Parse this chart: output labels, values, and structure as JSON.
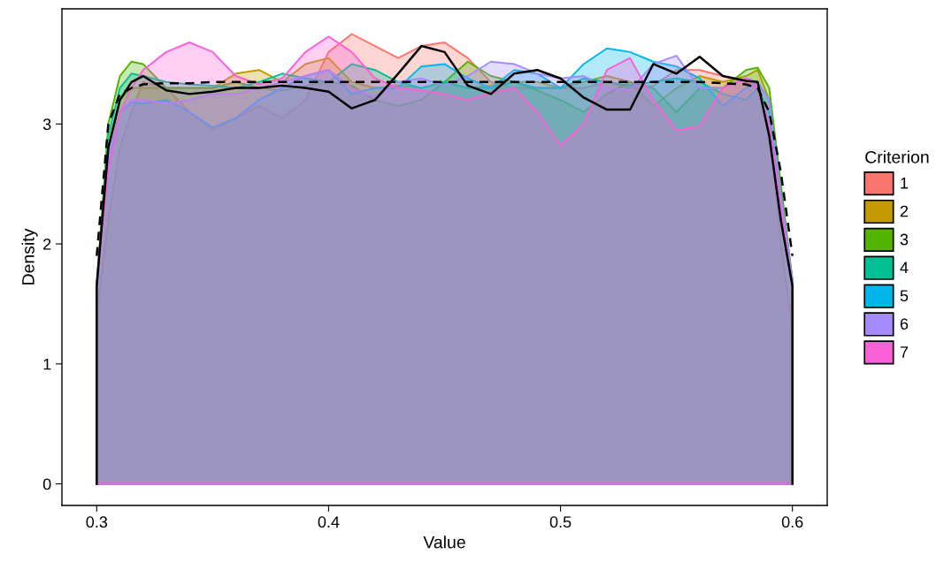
{
  "chart_data": {
    "type": "area",
    "xlabel": "Value",
    "ylabel": "Density",
    "legend_title": "Criterion",
    "legend": "right",
    "grid": false,
    "xlim": [
      0.285,
      0.615
    ],
    "ylim": [
      -0.18,
      3.96
    ],
    "xticks": [
      0.3,
      0.4,
      0.5,
      0.6
    ],
    "yticks": [
      0,
      1,
      2,
      3
    ],
    "x": [
      0.3,
      0.305,
      0.31,
      0.315,
      0.32,
      0.33,
      0.34,
      0.35,
      0.36,
      0.37,
      0.38,
      0.39,
      0.4,
      0.41,
      0.42,
      0.43,
      0.44,
      0.45,
      0.46,
      0.47,
      0.48,
      0.49,
      0.5,
      0.51,
      0.52,
      0.53,
      0.54,
      0.55,
      0.56,
      0.57,
      0.58,
      0.585,
      0.59,
      0.595,
      0.6
    ],
    "series": [
      {
        "name": "1",
        "color": "#f8766d",
        "values": [
          1.4,
          2.2,
          2.8,
          3.1,
          3.35,
          3.3,
          3.1,
          2.95,
          3.05,
          3.15,
          3.05,
          3.2,
          3.6,
          3.75,
          3.65,
          3.55,
          3.65,
          3.68,
          3.55,
          3.35,
          3.3,
          3.3,
          3.3,
          3.3,
          3.35,
          3.3,
          3.32,
          3.45,
          3.45,
          3.4,
          3.35,
          3.3,
          3.0,
          2.0,
          1.3
        ]
      },
      {
        "name": "2",
        "color": "#c49a00",
        "values": [
          1.65,
          2.8,
          3.2,
          3.3,
          3.3,
          3.3,
          3.3,
          3.3,
          3.42,
          3.45,
          3.35,
          3.5,
          3.55,
          3.35,
          3.3,
          3.32,
          3.3,
          3.35,
          3.3,
          3.32,
          3.35,
          3.35,
          3.3,
          3.35,
          3.4,
          3.35,
          3.15,
          3.3,
          3.4,
          3.35,
          3.4,
          3.45,
          3.2,
          2.4,
          1.65
        ]
      },
      {
        "name": "3",
        "color": "#53b400",
        "values": [
          1.65,
          3.0,
          3.4,
          3.52,
          3.5,
          3.3,
          3.3,
          3.3,
          3.35,
          3.3,
          3.28,
          3.32,
          3.35,
          3.32,
          3.2,
          3.15,
          3.2,
          3.35,
          3.52,
          3.4,
          3.35,
          3.28,
          3.2,
          3.1,
          3.25,
          3.35,
          3.3,
          3.1,
          3.3,
          3.3,
          3.45,
          3.47,
          3.3,
          2.5,
          1.7
        ]
      },
      {
        "name": "4",
        "color": "#00c094",
        "values": [
          1.65,
          2.9,
          3.3,
          3.42,
          3.4,
          3.35,
          3.33,
          3.32,
          3.3,
          3.35,
          3.42,
          3.38,
          3.35,
          3.5,
          3.45,
          3.35,
          3.3,
          3.35,
          3.3,
          3.3,
          3.35,
          3.3,
          3.3,
          3.38,
          3.35,
          3.32,
          3.35,
          3.38,
          3.35,
          3.25,
          3.2,
          3.3,
          3.1,
          2.4,
          1.65
        ]
      },
      {
        "name": "5",
        "color": "#00b6eb",
        "values": [
          1.65,
          2.7,
          3.1,
          3.18,
          3.17,
          3.2,
          3.1,
          2.97,
          3.05,
          3.2,
          3.3,
          3.4,
          3.45,
          3.25,
          3.3,
          3.3,
          3.48,
          3.5,
          3.38,
          3.3,
          3.45,
          3.42,
          3.3,
          3.5,
          3.63,
          3.6,
          3.52,
          3.48,
          3.38,
          3.15,
          3.3,
          3.35,
          3.2,
          2.4,
          1.7
        ]
      },
      {
        "name": "6",
        "color": "#a58aff",
        "values": [
          1.7,
          2.7,
          3.1,
          3.2,
          3.2,
          3.17,
          3.2,
          3.25,
          3.25,
          3.3,
          3.35,
          3.4,
          3.45,
          3.3,
          3.22,
          3.35,
          3.38,
          3.32,
          3.4,
          3.52,
          3.5,
          3.42,
          3.38,
          3.4,
          3.3,
          3.28,
          3.5,
          3.57,
          3.3,
          3.3,
          3.38,
          3.35,
          3.2,
          2.4,
          1.7
        ]
      },
      {
        "name": "7",
        "color": "#fb61d7",
        "values": [
          1.65,
          2.6,
          3.1,
          3.3,
          3.45,
          3.6,
          3.68,
          3.6,
          3.4,
          3.33,
          3.38,
          3.6,
          3.73,
          3.6,
          3.38,
          3.3,
          3.28,
          3.25,
          3.2,
          3.26,
          3.3,
          3.1,
          2.82,
          3.0,
          3.45,
          3.55,
          3.2,
          2.95,
          2.98,
          3.3,
          3.38,
          3.3,
          3.0,
          2.3,
          1.65
        ]
      },
      {
        "type": "line",
        "color": "#000000",
        "line_style": "dashed",
        "values": [
          1.9,
          3.0,
          3.25,
          3.3,
          3.33,
          3.34,
          3.34,
          3.35,
          3.35,
          3.35,
          3.35,
          3.35,
          3.35,
          3.35,
          3.35,
          3.35,
          3.35,
          3.35,
          3.35,
          3.35,
          3.35,
          3.35,
          3.35,
          3.35,
          3.35,
          3.35,
          3.35,
          3.35,
          3.35,
          3.34,
          3.33,
          3.3,
          3.1,
          2.6,
          1.9
        ]
      },
      {
        "type": "line",
        "color": "#000000",
        "line_style": "solid",
        "x": [
          0.3,
          0.3,
          0.305,
          0.31,
          0.315,
          0.32,
          0.33,
          0.34,
          0.35,
          0.36,
          0.37,
          0.38,
          0.39,
          0.4,
          0.41,
          0.42,
          0.43,
          0.44,
          0.45,
          0.46,
          0.47,
          0.48,
          0.49,
          0.5,
          0.51,
          0.52,
          0.53,
          0.54,
          0.55,
          0.56,
          0.57,
          0.58,
          0.585,
          0.59,
          0.595,
          0.6,
          0.6
        ],
        "values": [
          0,
          1.65,
          2.8,
          3.2,
          3.35,
          3.4,
          3.28,
          3.25,
          3.27,
          3.3,
          3.3,
          3.32,
          3.3,
          3.27,
          3.13,
          3.2,
          3.42,
          3.65,
          3.6,
          3.32,
          3.25,
          3.42,
          3.45,
          3.38,
          3.22,
          3.12,
          3.12,
          3.5,
          3.42,
          3.56,
          3.4,
          3.36,
          3.35,
          2.9,
          2.2,
          1.65,
          0
        ]
      }
    ]
  }
}
